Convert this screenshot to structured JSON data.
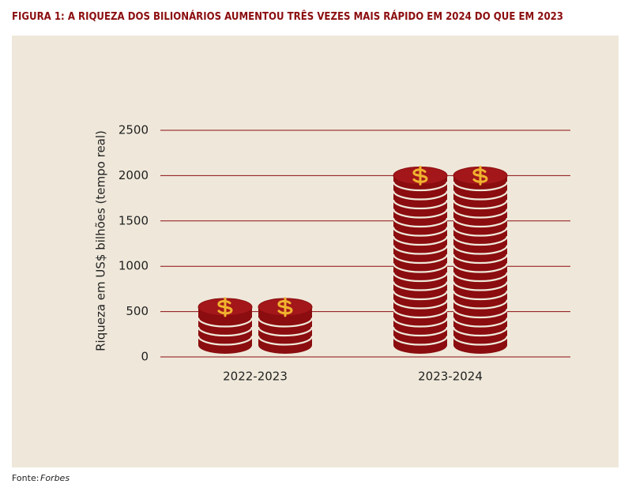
{
  "chart_data": {
    "type": "bar",
    "title": "FIGURA 1: A RIQUEZA DOS BILIONÁRIOS AUMENTOU TRÊS VEZES MAIS RÁPIDO EM 2024 DO QUE EM 2023",
    "y_label": "Riqueza em US$ bilhões (tempo real)",
    "categories": [
      "2022-2023",
      "2023-2024"
    ],
    "values": [
      550,
      2000
    ],
    "color": "#8b0d0f",
    "ylim": [
      0,
      2500
    ],
    "yticks": [
      0,
      500,
      1000,
      1500,
      2000,
      2500
    ],
    "grid": true,
    "source_label": "Fonte:",
    "source": "Forbes"
  }
}
